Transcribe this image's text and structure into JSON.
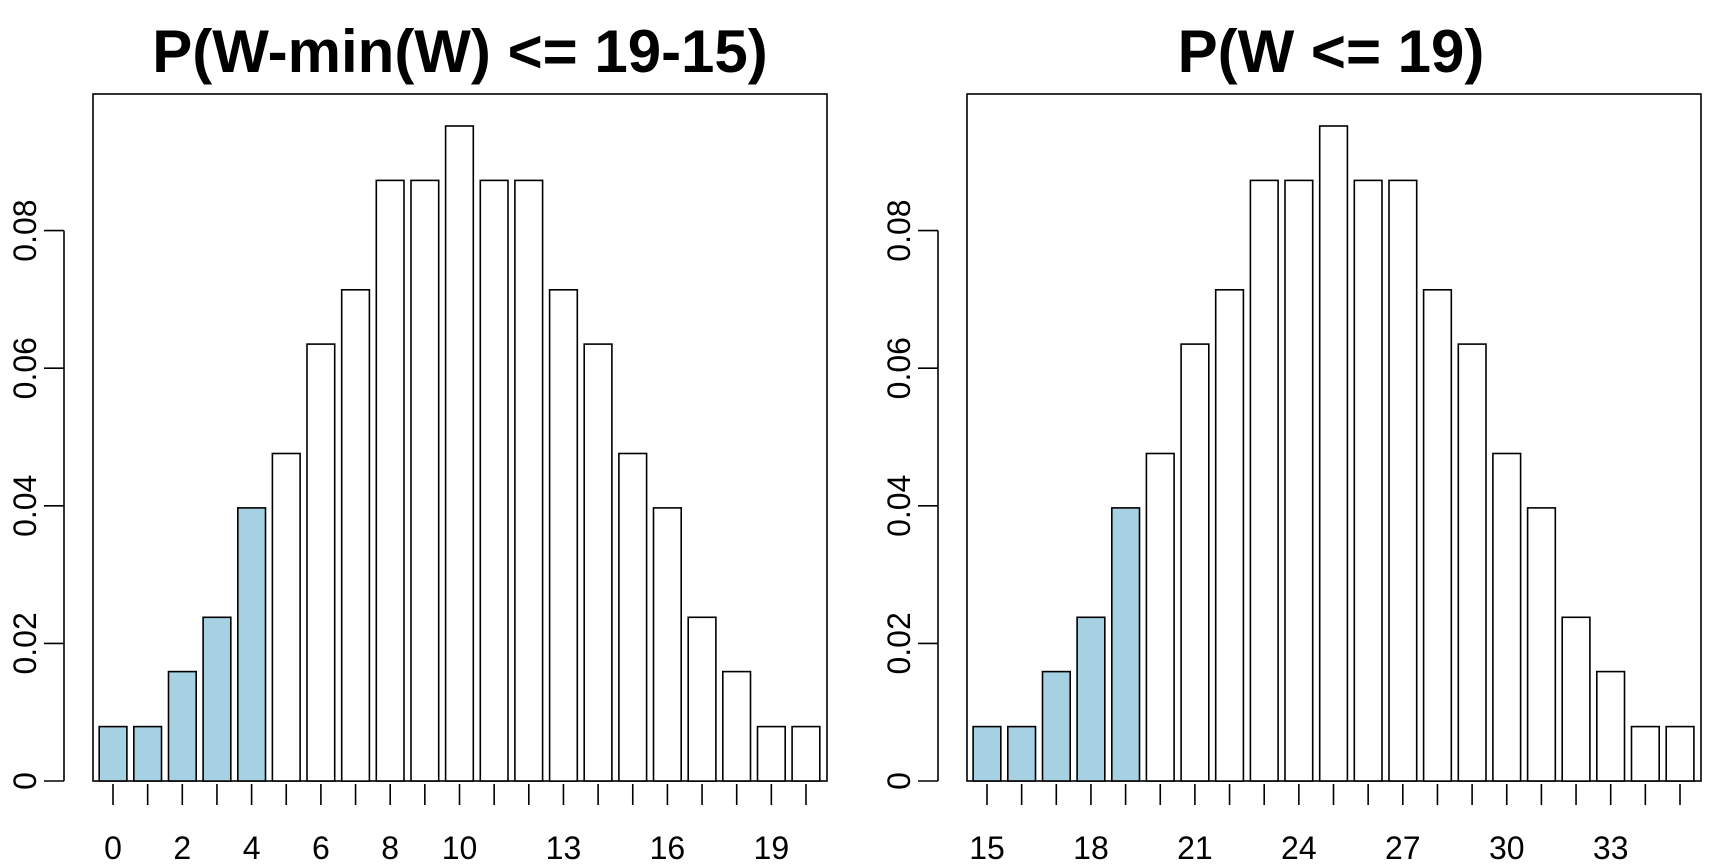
{
  "chart_data": [
    {
      "type": "bar",
      "title": "P(W-min(W) <= 19-15)",
      "xlabel": "",
      "ylabel": "",
      "categories": [
        "0",
        "1",
        "2",
        "3",
        "4",
        "5",
        "6",
        "7",
        "8",
        "9",
        "10",
        "11",
        "12",
        "13",
        "14",
        "15",
        "16",
        "17",
        "18",
        "19",
        "20"
      ],
      "x_tick_labels": [
        "0",
        "2",
        "4",
        "6",
        "8",
        "10",
        "13",
        "16",
        "19"
      ],
      "values": [
        0.0079,
        0.0079,
        0.0159,
        0.0238,
        0.0397,
        0.0476,
        0.0635,
        0.0714,
        0.0873,
        0.0873,
        0.0952,
        0.0873,
        0.0873,
        0.0714,
        0.0635,
        0.0476,
        0.0397,
        0.0238,
        0.0159,
        0.0079,
        0.0079
      ],
      "highlighted": [
        true,
        true,
        true,
        true,
        true,
        false,
        false,
        false,
        false,
        false,
        false,
        false,
        false,
        false,
        false,
        false,
        false,
        false,
        false,
        false,
        false
      ],
      "highlight_color": "#a6d1e3",
      "bar_color": "#ffffff",
      "ylim": [
        0,
        0.0952
      ],
      "y_ticks": [
        0,
        0.02,
        0.04,
        0.06,
        0.08
      ],
      "y_tick_labels": [
        "0",
        "0.02",
        "0.04",
        "0.06",
        "0.08"
      ],
      "grid": false,
      "legend": "none"
    },
    {
      "type": "bar",
      "title": "P(W <= 19)",
      "xlabel": "",
      "ylabel": "",
      "categories": [
        "15",
        "16",
        "17",
        "18",
        "19",
        "20",
        "21",
        "22",
        "23",
        "24",
        "25",
        "26",
        "27",
        "28",
        "29",
        "30",
        "31",
        "32",
        "33",
        "34",
        "35"
      ],
      "x_tick_labels": [
        "15",
        "18",
        "21",
        "24",
        "27",
        "30",
        "33"
      ],
      "values": [
        0.0079,
        0.0079,
        0.0159,
        0.0238,
        0.0397,
        0.0476,
        0.0635,
        0.0714,
        0.0873,
        0.0873,
        0.0952,
        0.0873,
        0.0873,
        0.0714,
        0.0635,
        0.0476,
        0.0397,
        0.0238,
        0.0159,
        0.0079,
        0.0079
      ],
      "highlighted": [
        true,
        true,
        true,
        true,
        true,
        false,
        false,
        false,
        false,
        false,
        false,
        false,
        false,
        false,
        false,
        false,
        false,
        false,
        false,
        false,
        false
      ],
      "highlight_color": "#a6d1e3",
      "bar_color": "#ffffff",
      "ylim": [
        0,
        0.0952
      ],
      "y_ticks": [
        0,
        0.02,
        0.04,
        0.06,
        0.08
      ],
      "y_tick_labels": [
        "0",
        "0.02",
        "0.04",
        "0.06",
        "0.08"
      ],
      "grid": false,
      "legend": "none"
    }
  ]
}
